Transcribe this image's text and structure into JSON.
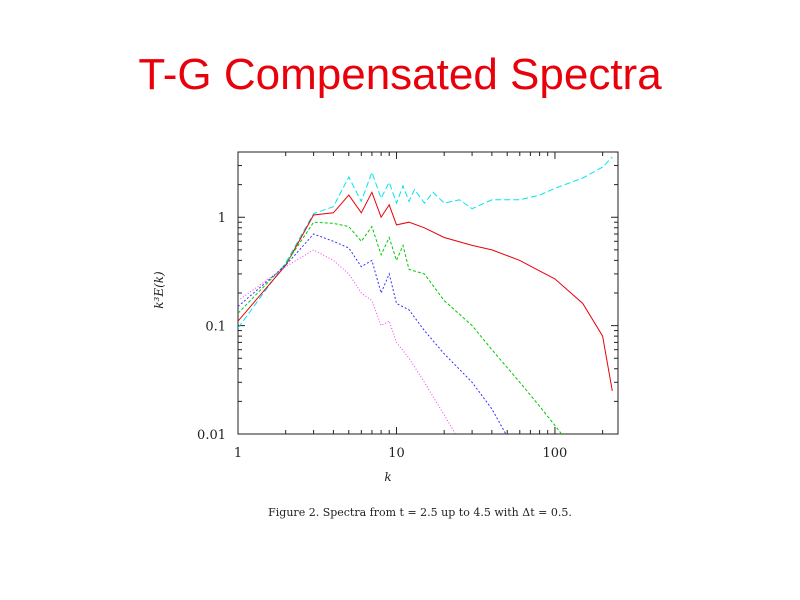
{
  "slide": {
    "title": "T-G Compensated Spectra"
  },
  "caption": "Figure 2. Spectra from t = 2.5 up to 4.5 with Δt = 0.5.",
  "colors": {
    "title": "#e8000b",
    "axes": "#222222"
  },
  "chart_data": {
    "type": "line",
    "title": "",
    "xlabel": "k",
    "ylabel": "k³E(k)",
    "xscale": "log",
    "yscale": "log",
    "xlim": [
      1,
      250
    ],
    "ylim": [
      0.01,
      4
    ],
    "x_ticks": [
      {
        "value": 1,
        "label": "1"
      },
      {
        "value": 10,
        "label": "10"
      },
      {
        "value": 100,
        "label": "100"
      }
    ],
    "y_ticks": [
      {
        "value": 0.01,
        "label": "0.01"
      },
      {
        "value": 0.1,
        "label": "0.1"
      },
      {
        "value": 1,
        "label": "1"
      }
    ],
    "grid": false,
    "legend": "none",
    "series": [
      {
        "color": "#00e5ee",
        "dash": "6,3",
        "points": [
          [
            1,
            0.095
          ],
          [
            2,
            0.38
          ],
          [
            3,
            1.08
          ],
          [
            4,
            1.25
          ],
          [
            5,
            2.35
          ],
          [
            6,
            1.4
          ],
          [
            7,
            2.6
          ],
          [
            8,
            1.5
          ],
          [
            9,
            2.1
          ],
          [
            10,
            1.35
          ],
          [
            11,
            1.95
          ],
          [
            12,
            1.4
          ],
          [
            13,
            1.8
          ],
          [
            15,
            1.35
          ],
          [
            17,
            1.7
          ],
          [
            20,
            1.35
          ],
          [
            25,
            1.45
          ],
          [
            30,
            1.2
          ],
          [
            40,
            1.45
          ],
          [
            60,
            1.45
          ],
          [
            80,
            1.6
          ],
          [
            100,
            1.85
          ],
          [
            150,
            2.3
          ],
          [
            200,
            2.9
          ],
          [
            230,
            3.6
          ]
        ]
      },
      {
        "color": "#e8000b",
        "dash": "",
        "points": [
          [
            1,
            0.11
          ],
          [
            2,
            0.36
          ],
          [
            3,
            1.05
          ],
          [
            4,
            1.1
          ],
          [
            5,
            1.6
          ],
          [
            6,
            1.1
          ],
          [
            7,
            1.7
          ],
          [
            8,
            1.0
          ],
          [
            9,
            1.3
          ],
          [
            10,
            0.85
          ],
          [
            12,
            0.9
          ],
          [
            15,
            0.8
          ],
          [
            20,
            0.65
          ],
          [
            30,
            0.55
          ],
          [
            40,
            0.5
          ],
          [
            60,
            0.4
          ],
          [
            80,
            0.32
          ],
          [
            100,
            0.27
          ],
          [
            150,
            0.16
          ],
          [
            200,
            0.08
          ],
          [
            230,
            0.025
          ]
        ]
      },
      {
        "color": "#00cc00",
        "dash": "3,2",
        "points": [
          [
            1,
            0.13
          ],
          [
            2,
            0.37
          ],
          [
            3,
            0.9
          ],
          [
            4,
            0.88
          ],
          [
            5,
            0.82
          ],
          [
            6,
            0.6
          ],
          [
            7,
            0.82
          ],
          [
            8,
            0.45
          ],
          [
            9,
            0.65
          ],
          [
            10,
            0.4
          ],
          [
            11,
            0.55
          ],
          [
            12,
            0.33
          ],
          [
            15,
            0.3
          ],
          [
            20,
            0.17
          ],
          [
            30,
            0.1
          ],
          [
            40,
            0.06
          ],
          [
            60,
            0.03
          ],
          [
            80,
            0.018
          ],
          [
            100,
            0.012
          ],
          [
            120,
            0.0085
          ]
        ]
      },
      {
        "color": "#3333ff",
        "dash": "2,2",
        "points": [
          [
            1,
            0.15
          ],
          [
            2,
            0.36
          ],
          [
            3,
            0.7
          ],
          [
            4,
            0.6
          ],
          [
            5,
            0.52
          ],
          [
            6,
            0.35
          ],
          [
            7,
            0.4
          ],
          [
            8,
            0.2
          ],
          [
            9,
            0.3
          ],
          [
            10,
            0.16
          ],
          [
            12,
            0.14
          ],
          [
            15,
            0.09
          ],
          [
            20,
            0.055
          ],
          [
            30,
            0.03
          ],
          [
            40,
            0.017
          ],
          [
            50,
            0.0095
          ]
        ]
      },
      {
        "color": "#ff33ff",
        "dash": "1,2",
        "points": [
          [
            1,
            0.17
          ],
          [
            2,
            0.35
          ],
          [
            3,
            0.5
          ],
          [
            4,
            0.4
          ],
          [
            5,
            0.3
          ],
          [
            6,
            0.2
          ],
          [
            7,
            0.17
          ],
          [
            8,
            0.1
          ],
          [
            9,
            0.11
          ],
          [
            10,
            0.07
          ],
          [
            12,
            0.05
          ],
          [
            15,
            0.03
          ],
          [
            20,
            0.015
          ],
          [
            24,
            0.0095
          ]
        ]
      }
    ]
  }
}
